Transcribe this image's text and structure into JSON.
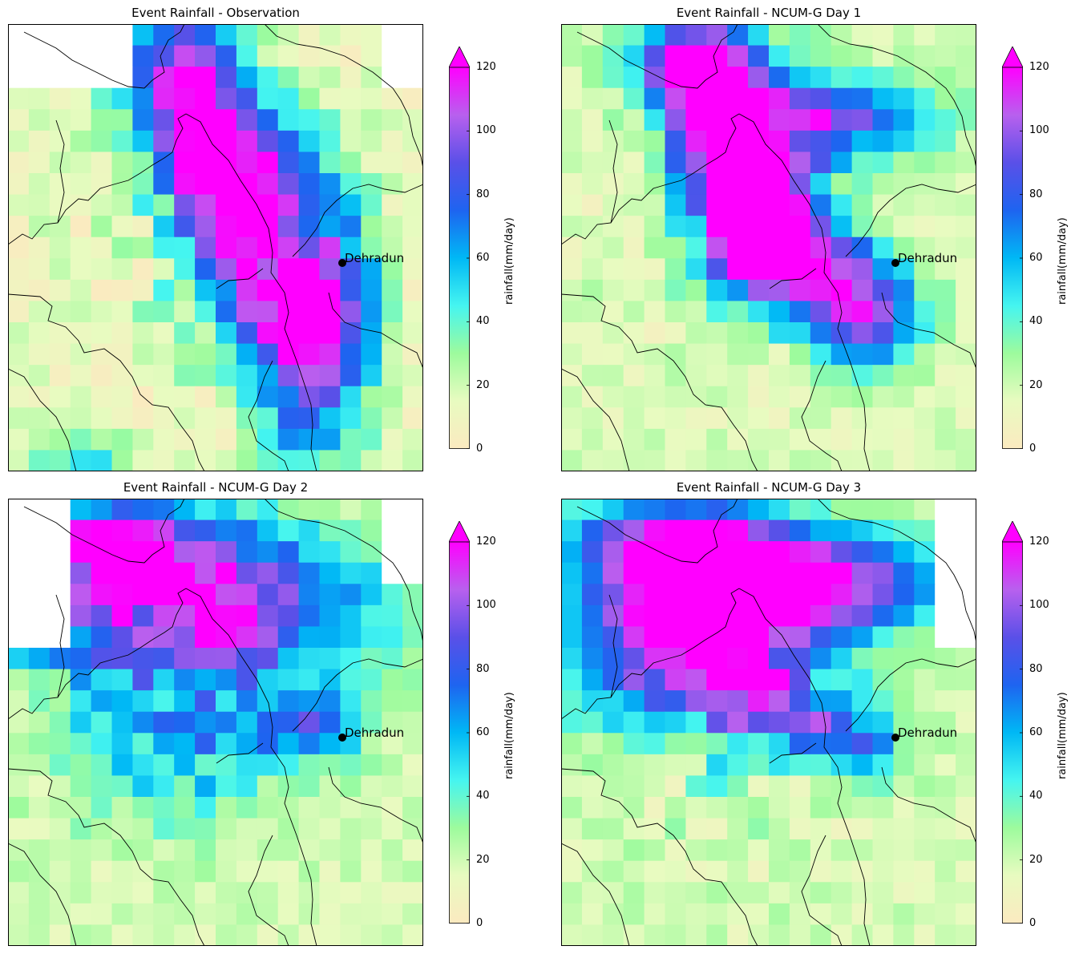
{
  "figure": {
    "colorbar": {
      "label": "rainfall(mm/day)",
      "ticks": [
        "0",
        "20",
        "40",
        "60",
        "80",
        "100",
        "120"
      ],
      "min": 0,
      "max": 120,
      "extend": "max",
      "colors": [
        "#fbeac0",
        "#e8fbc0",
        "#9dfb9d",
        "#45f5f0",
        "#00b8f5",
        "#1e64f0",
        "#5a50e8",
        "#b860ee",
        "#ff00ff"
      ]
    },
    "marker": {
      "label": "Dehradun"
    },
    "panels": [
      {
        "title": "Event Rainfall - Observation",
        "scenario": "obs"
      },
      {
        "title": "Event Rainfall - NCUM-G Day 1",
        "scenario": "d1"
      },
      {
        "title": "Event Rainfall - NCUM-G Day 2",
        "scenario": "d2"
      },
      {
        "title": "Event Rainfall - NCUM-G Day 3",
        "scenario": "d3"
      }
    ]
  }
}
